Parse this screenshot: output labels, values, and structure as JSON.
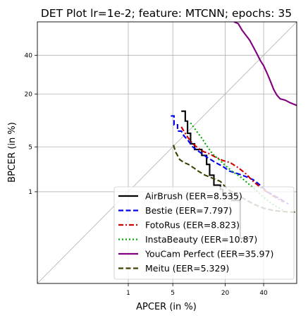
{
  "chart_data": {
    "type": "line",
    "title": "DET Plot lr=1e-2; feature: MTCNN; epochs: 35",
    "xlabel": "APCER (in %)",
    "ylabel": "BPCER (in %)",
    "xscale": "probit",
    "yscale": "probit",
    "xlim": [
      0.01,
      60
    ],
    "ylim": [
      0.01,
      60
    ],
    "xticks": [
      1,
      5,
      20,
      40
    ],
    "yticks": [
      1,
      5,
      20,
      40
    ],
    "xtick_labels": [
      "1",
      "5",
      "20",
      "40"
    ],
    "ytick_labels": [
      "1",
      "5",
      "20",
      "40"
    ],
    "grid": true,
    "diagonal": true,
    "legend_position": "lower-right",
    "series": [
      {
        "name": "AirBrush (EER=8.535)",
        "color": "#000000",
        "dash": "solid",
        "points": [
          [
            6.5,
            13.5
          ],
          [
            7.3,
            13.5
          ],
          [
            7.3,
            10.5
          ],
          [
            7.8,
            10.5
          ],
          [
            7.8,
            7.5
          ],
          [
            8.5,
            7.5
          ],
          [
            8.5,
            5.5
          ],
          [
            9.5,
            5.5
          ],
          [
            9.5,
            4.6
          ],
          [
            11.5,
            4.6
          ],
          [
            11.5,
            3.8
          ],
          [
            13,
            3.8
          ],
          [
            13,
            2.8
          ],
          [
            14,
            2.8
          ],
          [
            14,
            1.9
          ],
          [
            15.5,
            1.9
          ],
          [
            15.5,
            1.3
          ],
          [
            18,
            1.3
          ],
          [
            18,
            1.1
          ],
          [
            19,
            1.1
          ],
          [
            19,
            0.85
          ],
          [
            23,
            0.85
          ],
          [
            23,
            0.7
          ],
          [
            27,
            0.7
          ],
          [
            27,
            0.12
          ],
          [
            33,
            0.12
          ]
        ]
      },
      {
        "name": "Bestie (EER=7.797)",
        "color": "#0000ee",
        "dash": "dashed",
        "points": [
          [
            4.7,
            12
          ],
          [
            5.2,
            12
          ],
          [
            5.2,
            9.5
          ],
          [
            5.8,
            9.5
          ],
          [
            5.8,
            8
          ],
          [
            6.5,
            8
          ],
          [
            7,
            7
          ],
          [
            8,
            6
          ],
          [
            9,
            5
          ],
          [
            11,
            4.2
          ],
          [
            13,
            3.6
          ],
          [
            16,
            3
          ],
          [
            19,
            2.6
          ],
          [
            22,
            2.2
          ],
          [
            26,
            2
          ],
          [
            30,
            1.8
          ],
          [
            34,
            1.6
          ],
          [
            38,
            1.3
          ],
          [
            42,
            1
          ],
          [
            48,
            0.8
          ],
          [
            55,
            0.6
          ]
        ]
      },
      {
        "name": "FotoRus (EER=8.823)",
        "color": "#cc0000",
        "dash": "dashdot",
        "points": [
          [
            6.5,
            9
          ],
          [
            7,
            8
          ],
          [
            8,
            6.5
          ],
          [
            9,
            5.5
          ],
          [
            10.5,
            4.8
          ],
          [
            12,
            4.3
          ],
          [
            14,
            4
          ],
          [
            16,
            3.6
          ],
          [
            19,
            3.2
          ],
          [
            22,
            3
          ],
          [
            26,
            2.5
          ],
          [
            30,
            2
          ],
          [
            34,
            1.5
          ],
          [
            38,
            1.2
          ],
          [
            44,
            0.9
          ],
          [
            52,
            0.65
          ]
        ]
      },
      {
        "name": "InstaBeauty (EER=10.87)",
        "color": "#00aa00",
        "dash": "dotted",
        "points": [
          [
            8.5,
            10
          ],
          [
            10,
            8
          ],
          [
            11.5,
            6.5
          ],
          [
            13,
            5.2
          ],
          [
            15,
            4
          ],
          [
            17.5,
            3.3
          ],
          [
            20,
            2.7
          ],
          [
            23,
            2.2
          ],
          [
            27,
            1.8
          ],
          [
            31,
            1.4
          ],
          [
            35,
            1.1
          ],
          [
            40,
            0.8
          ],
          [
            45,
            0.6
          ],
          [
            52,
            0.45
          ]
        ]
      },
      {
        "name": "YouCam Perfect (EER=35.97)",
        "color": "#800080",
        "dash": "solid",
        "points": [
          [
            24,
            60
          ],
          [
            26,
            59
          ],
          [
            27,
            57
          ],
          [
            28,
            55
          ],
          [
            30,
            52
          ],
          [
            32,
            49
          ],
          [
            34,
            45
          ],
          [
            36,
            41
          ],
          [
            38,
            37
          ],
          [
            40,
            34
          ],
          [
            42,
            30
          ],
          [
            44,
            26
          ],
          [
            46,
            22
          ],
          [
            48,
            19.5
          ],
          [
            50,
            18
          ],
          [
            53,
            17.5
          ],
          [
            56,
            16.5
          ],
          [
            60,
            15.5
          ]
        ]
      },
      {
        "name": "Meitu (EER=5.329)",
        "color": "#404000",
        "dash": "dashed",
        "points": [
          [
            5.1,
            5.3
          ],
          [
            5.5,
            4.2
          ],
          [
            6.2,
            3.3
          ],
          [
            7,
            3
          ],
          [
            8,
            2.8
          ],
          [
            9.2,
            2.5
          ],
          [
            10.5,
            2.2
          ],
          [
            12.5,
            1.9
          ],
          [
            15,
            1.7
          ],
          [
            18,
            1.5
          ],
          [
            21,
            1.1
          ],
          [
            25,
            0.9
          ],
          [
            29,
            0.75
          ],
          [
            34,
            0.6
          ],
          [
            40,
            0.5
          ],
          [
            46,
            0.45
          ],
          [
            55,
            0.42
          ],
          [
            60,
            0.42
          ]
        ]
      }
    ]
  }
}
